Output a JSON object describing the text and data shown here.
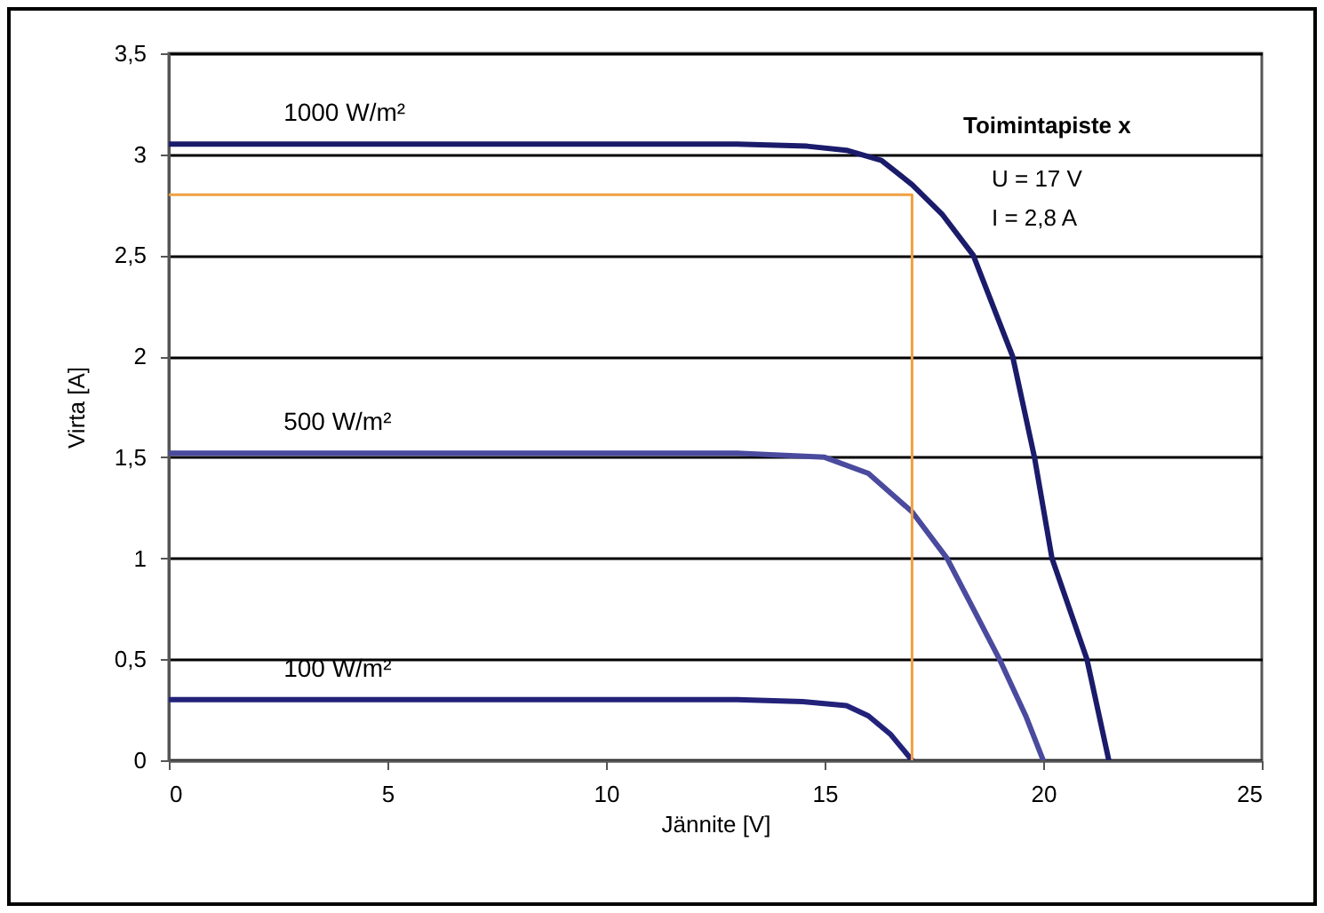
{
  "chart_data": {
    "type": "line",
    "xlabel": "Jännite [V]",
    "ylabel": "Virta [A]",
    "xlim": [
      0,
      25
    ],
    "xticks": [
      0,
      5,
      10,
      15,
      20,
      25
    ],
    "ylim": [
      0,
      3.5
    ],
    "yticks": [
      0,
      {
        "value": 0.5,
        "label": "0,5"
      },
      1,
      {
        "value": 1.5,
        "label": "1,5"
      },
      2,
      {
        "value": 2.5,
        "label": "2,5"
      },
      3,
      {
        "value": 3.5,
        "label": "3,5"
      }
    ],
    "grid": "y",
    "line_style": "solid",
    "series": [
      {
        "name": "1000 W/m²",
        "color": "#1b1b6b",
        "x": [
          0,
          10,
          13,
          14.6,
          15.5,
          16.3,
          17,
          17.7,
          18.4,
          19.3,
          19.8,
          20.2,
          21,
          21.5
        ],
        "values": [
          3.05,
          3.05,
          3.05,
          3.04,
          3.02,
          2.97,
          2.85,
          2.7,
          2.5,
          2,
          1.5,
          1,
          0.5,
          0
        ]
      },
      {
        "name": "500 W/m²",
        "color": "#4a4a9e",
        "x": [
          0,
          10,
          13,
          15,
          16,
          17,
          17.8,
          18.4,
          19,
          19.6,
          20
        ],
        "values": [
          1.52,
          1.52,
          1.52,
          1.5,
          1.42,
          1.23,
          1,
          0.75,
          0.5,
          0.22,
          0
        ]
      },
      {
        "name": "100 W/m²",
        "color": "#22227a",
        "x": [
          0,
          10,
          13,
          14.5,
          15.5,
          16,
          16.5,
          17
        ],
        "values": [
          0.3,
          0.3,
          0.3,
          0.29,
          0.27,
          0.22,
          0.13,
          0
        ]
      },
      {
        "type": "line",
        "color": "#f0a040",
        "x": [
          0,
          17,
          17
        ],
        "values": [
          2.8,
          2.8,
          0
        ]
      }
    ],
    "annotations": [
      "Toimintapiste x",
      "U = 17 V",
      "I = 2,8 A"
    ]
  }
}
